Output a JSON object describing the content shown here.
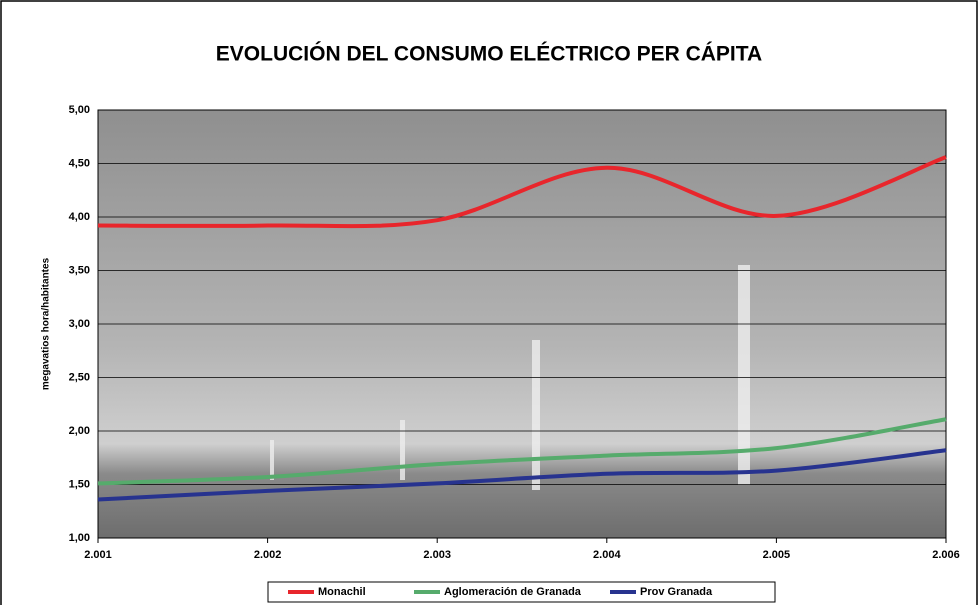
{
  "chart_data": {
    "type": "line",
    "title": "EVOLUCIÓN DEL CONSUMO ELÉCTRICO PER CÁPITA",
    "y_label": "megavatios hora/habitantes",
    "categories": [
      "2.001",
      "2.002",
      "2.003",
      "2.004",
      "2.005",
      "2.006"
    ],
    "series": [
      {
        "name": "Monachil",
        "color": "#e8262c",
        "values": [
          3.92,
          3.92,
          3.97,
          4.46,
          4.01,
          4.56
        ]
      },
      {
        "name": "Aglomeración de Granada",
        "color": "#56ab6c",
        "values": [
          1.51,
          1.57,
          1.69,
          1.77,
          1.84,
          2.11
        ]
      },
      {
        "name": "Prov Granada",
        "color": "#27338f",
        "values": [
          1.36,
          1.44,
          1.51,
          1.6,
          1.63,
          1.82
        ]
      }
    ],
    "ylim": [
      1,
      5
    ],
    "yticks": [
      {
        "value": 1,
        "label": "1,00"
      },
      {
        "value": 1.5,
        "label": "1,50"
      },
      {
        "value": 2,
        "label": "2,00"
      },
      {
        "value": 2.5,
        "label": "2,50"
      },
      {
        "value": 3,
        "label": "3,00"
      },
      {
        "value": 3.5,
        "label": "3,50"
      },
      {
        "value": 4,
        "label": "4,00"
      },
      {
        "value": 4.5,
        "label": "4,50"
      },
      {
        "value": 5,
        "label": "5,00"
      }
    ],
    "grid": true,
    "smooth": true,
    "legend": "bottom"
  }
}
